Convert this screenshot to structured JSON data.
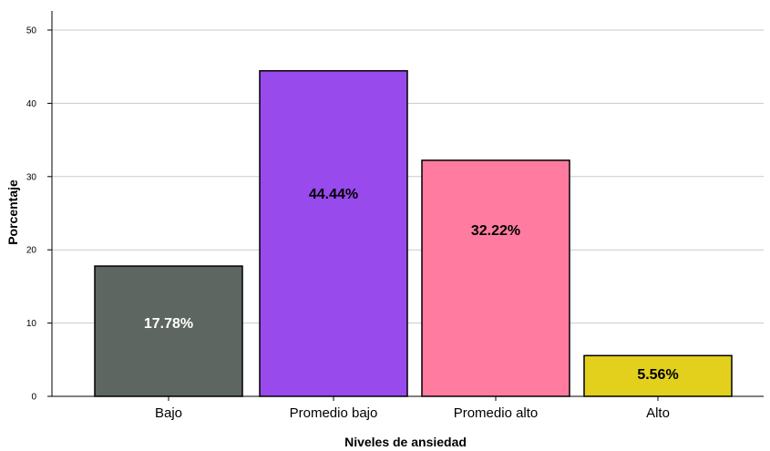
{
  "chart_data": {
    "type": "bar",
    "title": "",
    "xlabel": "Niveles de ansiedad",
    "ylabel": "Porcentaje",
    "categories": [
      "Bajo",
      "Promedio bajo",
      "Promedio alto",
      "Alto"
    ],
    "values": [
      17.78,
      44.44,
      32.22,
      5.56
    ],
    "data_labels": [
      "17.78%",
      "44.44%",
      "32.22%",
      "5.56%"
    ],
    "ylim": [
      0,
      50
    ],
    "yticks": [
      "0",
      "10",
      "20",
      "30",
      "40",
      "50"
    ],
    "grid": true,
    "legend": "none",
    "colors": {
      "bars": [
        "#5d6660",
        "#984aed",
        "#ff7ca0",
        "#e2d01d"
      ],
      "label_text": [
        "#ffffff",
        "#000000",
        "#000000",
        "#000000"
      ],
      "grid": "#c9c9c9",
      "axis": "#000000",
      "bar_border": "#000000"
    }
  }
}
